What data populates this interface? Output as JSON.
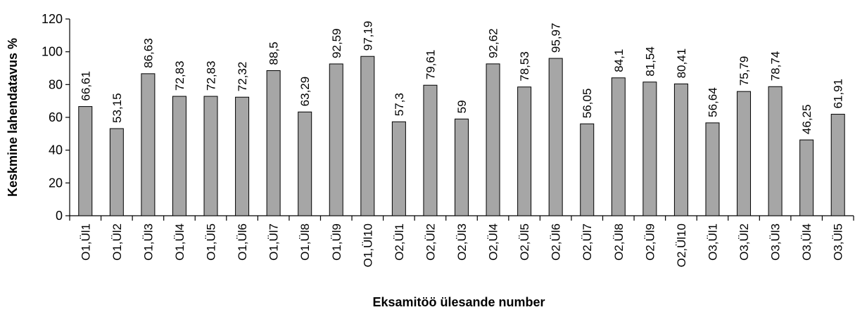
{
  "chart_data": {
    "type": "bar",
    "title": "",
    "xlabel": "Eksamitöö ülesande number",
    "ylabel": "Keskmine lahendatavus %",
    "ylim": [
      0,
      120
    ],
    "yticks": [
      "0",
      "20",
      "40",
      "60",
      "80",
      "100",
      "120"
    ],
    "grid": false,
    "bar_color": "#a6a6a6",
    "categories": [
      "O1,Ül1",
      "O1,Ül2",
      "O1,Ül3",
      "O1,Ül4",
      "O1,Ül5",
      "O1,Ül6",
      "O1,Ül7",
      "O1,Ül8",
      "O1,Ül9",
      "O1,Ül10",
      "O2,Ül1",
      "O2,Ül2",
      "O2,Ül3",
      "O2,Ül4",
      "O2,Ül5",
      "O2,Ül6",
      "O2,Ül7",
      "O2,Ül8",
      "O2,Ül9",
      "O2,Ül10",
      "O3,Ül1",
      "O3,Ül2",
      "O3,Ül3",
      "O3,Ül4",
      "O3,Ül5"
    ],
    "values": [
      66.61,
      53.15,
      86.63,
      72.83,
      72.83,
      72.32,
      88.5,
      63.29,
      92.59,
      97.19,
      57.3,
      79.61,
      59,
      92.62,
      78.53,
      95.97,
      56.05,
      84.1,
      81.54,
      80.41,
      56.64,
      75.79,
      78.74,
      46.25,
      61.91
    ],
    "value_labels": [
      "66,61",
      "53,15",
      "86,63",
      "72,83",
      "72,83",
      "72,32",
      "88,5",
      "63,29",
      "92,59",
      "97,19",
      "57,3",
      "79,61",
      "59",
      "92,62",
      "78,53",
      "95,97",
      "56,05",
      "84,1",
      "81,54",
      "80,41",
      "56,64",
      "75,79",
      "78,74",
      "46,25",
      "61,91"
    ]
  }
}
